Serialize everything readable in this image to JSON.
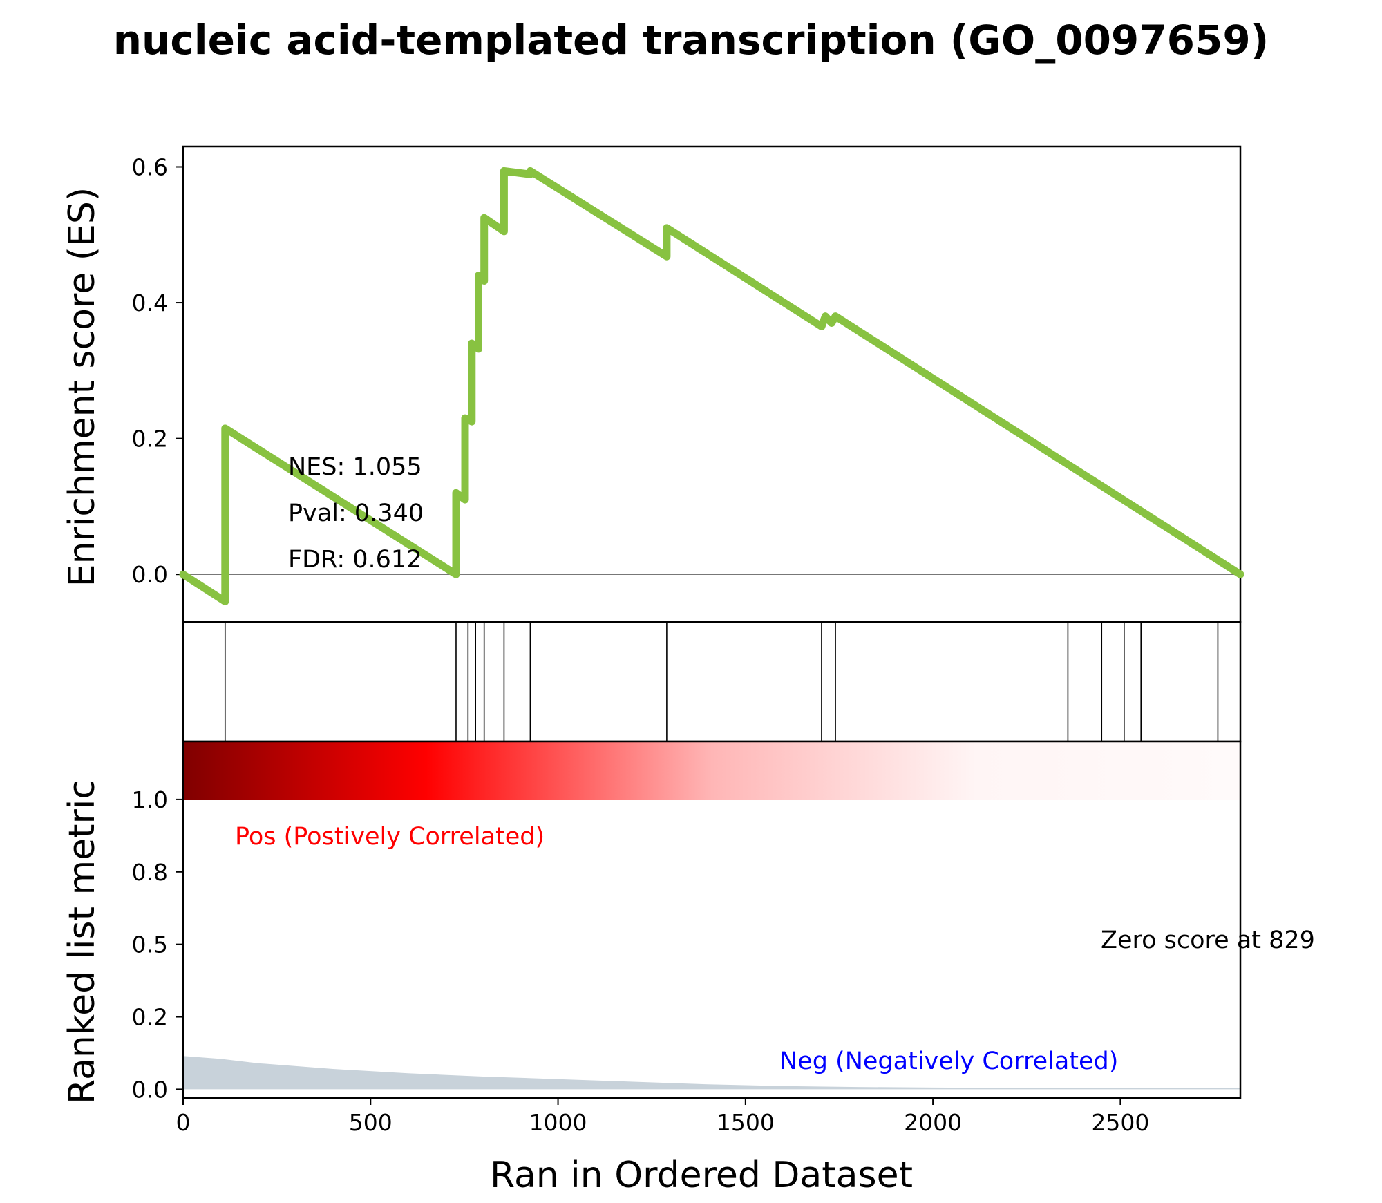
{
  "chart_data": {
    "type": "line",
    "title": "nucleic acid-templated transcription (GO_0097659)",
    "xlabel": "Ran in  Ordered Dataset",
    "es_panel": {
      "ylabel": "Enrichment score (ES)",
      "ylim": [
        -0.07,
        0.63
      ],
      "yticks": [
        0.0,
        0.2,
        0.4,
        0.6
      ],
      "ytick_labels": [
        "0.0",
        "0.2",
        "0.4",
        "0.6"
      ],
      "series": [
        {
          "color": "#88c241",
          "x": [
            0,
            112,
            112,
            728,
            728,
            752,
            752,
            770,
            770,
            788,
            788,
            803,
            803,
            856,
            856,
            926,
            926,
            1290,
            1290,
            1703,
            1713,
            1730,
            1740,
            2820
          ],
          "y": [
            0.0,
            -0.04,
            0.215,
            0.0,
            0.12,
            0.11,
            0.23,
            0.225,
            0.34,
            0.332,
            0.44,
            0.432,
            0.525,
            0.505,
            0.594,
            0.589,
            0.594,
            0.468,
            0.51,
            0.365,
            0.38,
            0.37,
            0.38,
            0.0
          ]
        }
      ],
      "zero_line": true,
      "annotations": [
        "NES: 1.055",
        "Pval: 0.340",
        "FDR: 0.612"
      ]
    },
    "hits_panel": {
      "hit_positions": [
        112,
        728,
        760,
        780,
        803,
        856,
        926,
        1290,
        1703,
        1740,
        2360,
        2450,
        2510,
        2555,
        2760
      ]
    },
    "rank_panel": {
      "ylabel": "Ranked list metric",
      "ylim": [
        -0.03,
        1.2
      ],
      "yticks": [
        0.0,
        0.25,
        0.5,
        0.75,
        1.0
      ],
      "ytick_labels": [
        "0.0",
        "0.2",
        "0.5",
        "0.8",
        "1.0"
      ],
      "metric": {
        "color": "#c8d2da",
        "x": [
          0,
          100,
          200,
          400,
          600,
          800,
          1000,
          1200,
          1400,
          1600,
          1800,
          2000,
          2200,
          2400,
          2600,
          2820
        ],
        "y": [
          0.115,
          0.105,
          0.09,
          0.07,
          0.055,
          0.044,
          0.035,
          0.026,
          0.017,
          0.011,
          0.008,
          0.006,
          0.005,
          0.005,
          0.005,
          0.005
        ]
      },
      "pos_label": "Pos (Postively Correlated)",
      "neg_label": "Neg (Negatively Correlated)",
      "zero_score_label": "Zero score at 829"
    },
    "xlim": [
      0,
      2820
    ],
    "xticks": [
      0,
      500,
      1000,
      1500,
      2000,
      2500
    ],
    "xtick_labels": [
      "0",
      "500",
      "1000",
      "1500",
      "2000",
      "2500"
    ],
    "gradient_colors": [
      "#800000",
      "#ff0000",
      "#ffb6b6",
      "#fff5f5"
    ]
  }
}
